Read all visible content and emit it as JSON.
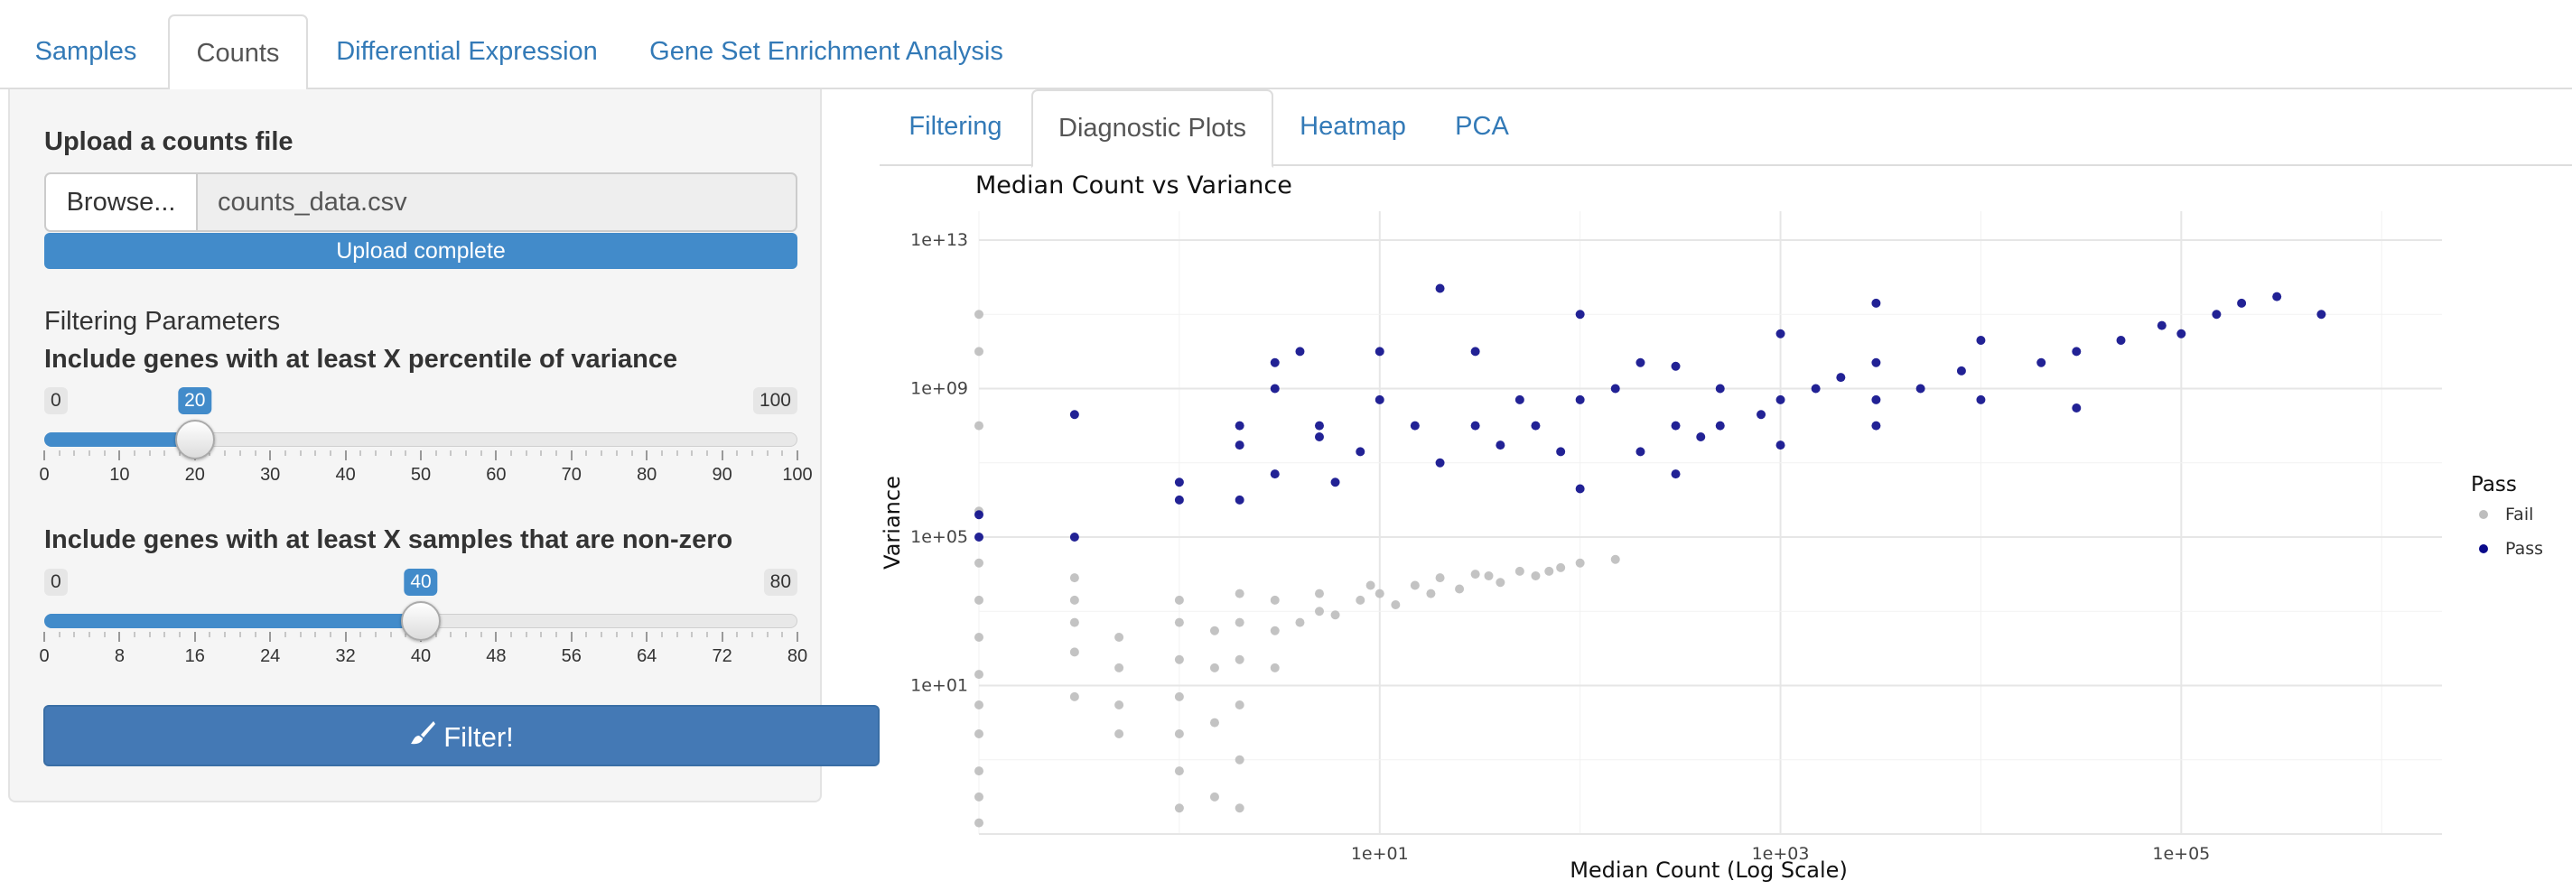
{
  "top_tabs": [
    {
      "label": "Samples"
    },
    {
      "label": "Counts"
    },
    {
      "label": "Differential Expression"
    },
    {
      "label": "Gene Set Enrichment Analysis"
    }
  ],
  "sidebar": {
    "upload_label": "Upload a counts file",
    "browse_label": "Browse...",
    "file_name": "counts_data.csv",
    "progress_text": "Upload complete",
    "progress_value": 1.0,
    "section_title": "Filtering Parameters",
    "slider_variance": {
      "label": "Include genes with at least X percentile of variance",
      "min": "0",
      "max": "100",
      "value": "20",
      "min_num": 0,
      "max_num": 100,
      "value_num": 20,
      "ticks": [
        "0",
        "10",
        "20",
        "30",
        "40",
        "50",
        "60",
        "70",
        "80",
        "90",
        "100"
      ]
    },
    "slider_samples": {
      "label": "Include genes with at least X samples that are non-zero",
      "min": "0",
      "max": "80",
      "value": "40",
      "min_num": 0,
      "max_num": 80,
      "value_num": 40,
      "ticks": [
        "0",
        "8",
        "16",
        "24",
        "32",
        "40",
        "48",
        "56",
        "64",
        "72",
        "80"
      ]
    },
    "filter_label": "Filter!"
  },
  "sub_tabs": [
    {
      "label": "Filtering"
    },
    {
      "label": "Diagnostic Plots"
    },
    {
      "label": "Heatmap"
    },
    {
      "label": "PCA"
    }
  ],
  "colors": {
    "fail": "#bdbdbd",
    "pass": "#0a0a8a",
    "accent": "#428bca"
  },
  "chart_data": {
    "type": "scatter",
    "title": "Median Count vs Variance",
    "xlabel": "Median Count (Log Scale)",
    "ylabel": "Variance",
    "x_scale": "log10",
    "y_scale": "log10",
    "x_range": [
      0.1,
      2000000
    ],
    "y_range": [
      0.001,
      60000000000000
    ],
    "x_ticks": [
      "1e+01",
      "1e+03",
      "1e+05"
    ],
    "y_ticks": [
      "1e+01",
      "1e+05",
      "1e+09",
      "1e+13"
    ],
    "grid": true,
    "legend": {
      "title": "Pass",
      "position": "right"
    },
    "series": [
      {
        "name": "Fail",
        "color": "#bdbdbd",
        "points": [
          [
            0.1,
            0.002
          ],
          [
            0.1,
            0.01
          ],
          [
            0.1,
            0.05
          ],
          [
            0.1,
            0.5
          ],
          [
            0.1,
            3
          ],
          [
            0.1,
            20
          ],
          [
            0.1,
            200
          ],
          [
            0.1,
            2000
          ],
          [
            0.1,
            20000
          ],
          [
            0.1,
            500000.0
          ],
          [
            0.1,
            100000000.0
          ],
          [
            0.1,
            10000000000.0
          ],
          [
            0.1,
            100000000000.0
          ],
          [
            0.3,
            5
          ],
          [
            0.3,
            80
          ],
          [
            0.3,
            500
          ],
          [
            0.3,
            2000
          ],
          [
            0.3,
            8000
          ],
          [
            0.5,
            0.5
          ],
          [
            0.5,
            3
          ],
          [
            0.5,
            30
          ],
          [
            0.5,
            200
          ],
          [
            1,
            0.005
          ],
          [
            1,
            0.05
          ],
          [
            1,
            0.5
          ],
          [
            1,
            5
          ],
          [
            1,
            50
          ],
          [
            1,
            500
          ],
          [
            1,
            2000
          ],
          [
            1.5,
            0.01
          ],
          [
            1.5,
            1
          ],
          [
            1.5,
            30
          ],
          [
            1.5,
            300
          ],
          [
            2,
            0.005
          ],
          [
            2,
            0.1
          ],
          [
            2,
            3
          ],
          [
            2,
            50
          ],
          [
            2,
            500
          ],
          [
            2,
            3000
          ],
          [
            3,
            30
          ],
          [
            3,
            300
          ],
          [
            3,
            2000
          ],
          [
            4,
            500
          ],
          [
            5,
            1000
          ],
          [
            5,
            3000
          ],
          [
            8,
            2000
          ],
          [
            10,
            3000
          ],
          [
            15,
            5000
          ],
          [
            20,
            8000
          ],
          [
            30,
            10000
          ],
          [
            50,
            12000
          ],
          [
            80,
            15000
          ],
          [
            6,
            800
          ],
          [
            12,
            1500
          ],
          [
            25,
            4000
          ],
          [
            40,
            6000
          ],
          [
            60,
            9000
          ],
          [
            100,
            20000
          ],
          [
            150,
            25000
          ],
          [
            9,
            5000
          ],
          [
            18,
            3000
          ],
          [
            35,
            9000
          ],
          [
            70,
            12000
          ]
        ]
      },
      {
        "name": "Pass",
        "color": "#0a0a8a",
        "points": [
          [
            0.1,
            100000.0
          ],
          [
            0.1,
            400000.0
          ],
          [
            0.3,
            200000000.0
          ],
          [
            0.3,
            100000.0
          ],
          [
            1,
            3000000.0
          ],
          [
            1,
            1000000.0
          ],
          [
            2,
            100000000.0
          ],
          [
            2,
            30000000.0
          ],
          [
            2,
            1000000.0
          ],
          [
            3,
            5000000000.0
          ],
          [
            3,
            1000000000.0
          ],
          [
            3,
            5000000.0
          ],
          [
            4,
            10000000000.0
          ],
          [
            5,
            100000000.0
          ],
          [
            5,
            50000000.0
          ],
          [
            6,
            3000000.0
          ],
          [
            8,
            20000000.0
          ],
          [
            10,
            10000000000.0
          ],
          [
            10,
            500000000.0
          ],
          [
            15,
            100000000.0
          ],
          [
            20,
            500000000000.0
          ],
          [
            20,
            10000000.0
          ],
          [
            30,
            10000000000.0
          ],
          [
            30,
            100000000.0
          ],
          [
            40,
            30000000.0
          ],
          [
            50,
            500000000.0
          ],
          [
            60,
            100000000.0
          ],
          [
            80,
            20000000.0
          ],
          [
            100,
            100000000000.0
          ],
          [
            100,
            500000000.0
          ],
          [
            150,
            1000000000.0
          ],
          [
            200,
            20000000.0
          ],
          [
            200,
            5000000000.0
          ],
          [
            300,
            100000000.0
          ],
          [
            300,
            4000000000.0
          ],
          [
            400,
            50000000.0
          ],
          [
            500,
            1000000000.0
          ],
          [
            500,
            100000000.0
          ],
          [
            800,
            200000000.0
          ],
          [
            1000,
            30000000000.0
          ],
          [
            1000,
            500000000.0
          ],
          [
            1500,
            1000000000.0
          ],
          [
            2000,
            2000000000.0
          ],
          [
            3000,
            500000000.0
          ],
          [
            3000,
            5000000000.0
          ],
          [
            5000,
            1000000000.0
          ],
          [
            8000,
            3000000000.0
          ],
          [
            10000,
            20000000000.0
          ],
          [
            20000,
            5000000000.0
          ],
          [
            30000,
            10000000000.0
          ],
          [
            50000,
            20000000000.0
          ],
          [
            80000,
            50000000000.0
          ],
          [
            100000,
            30000000000.0
          ],
          [
            150000,
            100000000000.0
          ],
          [
            200000,
            200000000000.0
          ],
          [
            30000,
            300000000.0
          ],
          [
            10000,
            500000000.0
          ],
          [
            3000,
            100000000.0
          ],
          [
            1000,
            30000000.0
          ],
          [
            300,
            5000000.0
          ],
          [
            100,
            2000000.0
          ],
          [
            3000,
            200000000000.0
          ],
          [
            300000,
            300000000000.0
          ],
          [
            500000,
            100000000000.0
          ]
        ]
      }
    ]
  }
}
